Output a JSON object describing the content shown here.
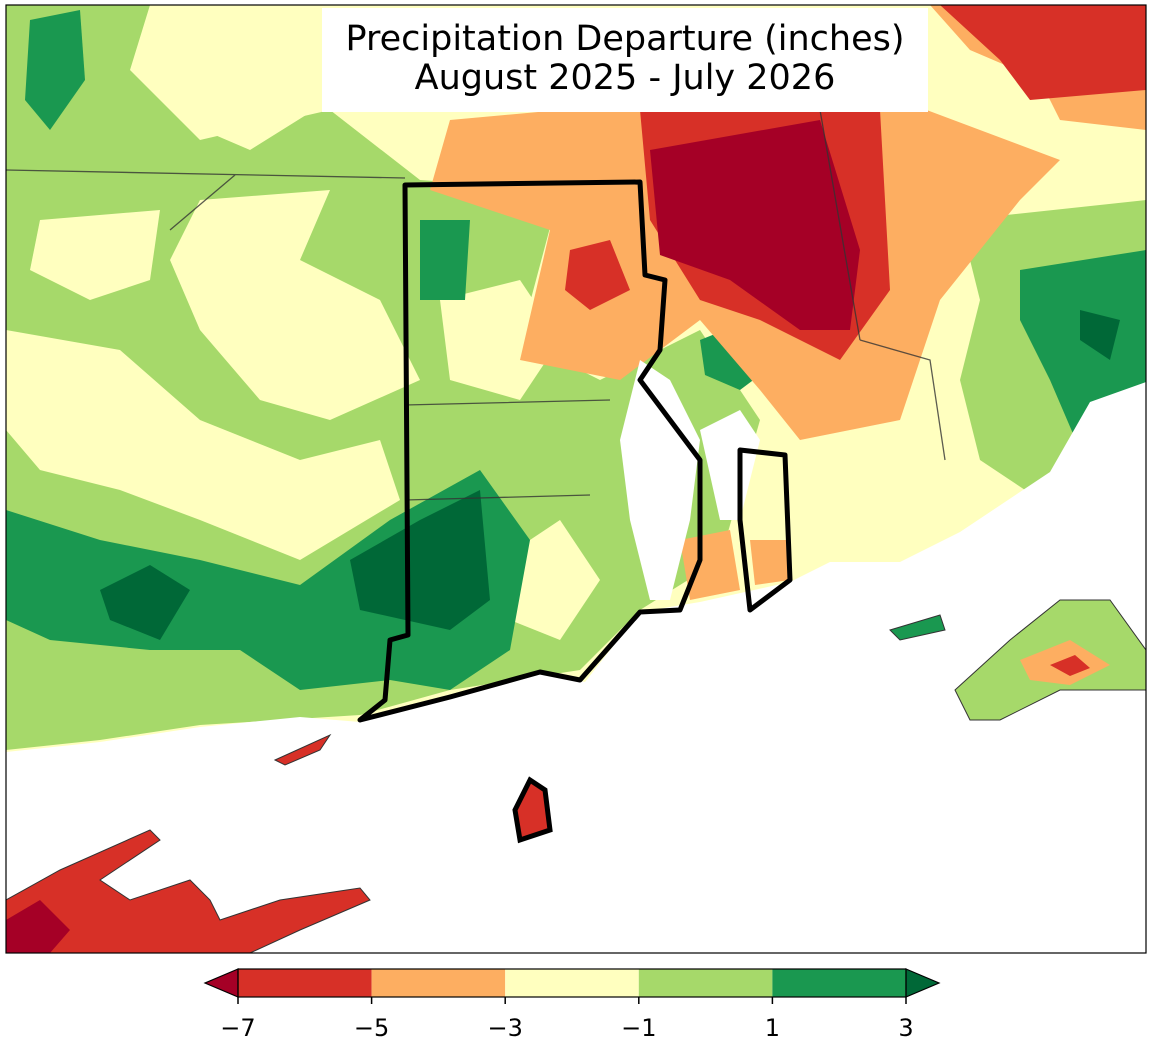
{
  "map": {
    "title": [
      "Precipitation Departure (inches)",
      "August 2025 - July 2026"
    ],
    "colorbar": {
      "ticks": [
        {
          "value": -7,
          "label": "−7"
        },
        {
          "value": -5,
          "label": "−5"
        },
        {
          "value": -3,
          "label": "−3"
        },
        {
          "value": -1,
          "label": "−1"
        },
        1,
        3
      ],
      "colors": [
        "#d73027",
        "#fdae61",
        "#ffffbf",
        "#a6d96a",
        "#1a9850"
      ],
      "extend_low_color": "#a50026",
      "extend_high_color": "#006837"
    }
  }
}
